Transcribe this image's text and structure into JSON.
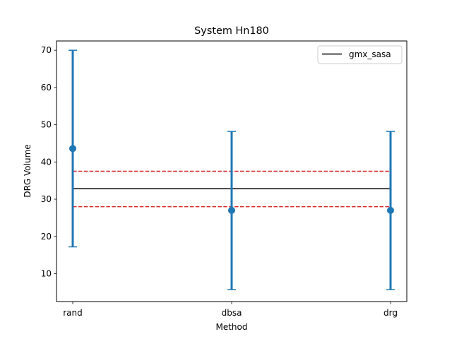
{
  "chart_data": {
    "type": "scatter",
    "title": "System Hn180",
    "xlabel": "Method",
    "ylabel": "DRG Volume",
    "categories": [
      "rand",
      "dbsa",
      "drg"
    ],
    "ylim": [
      2.5,
      72.5
    ],
    "yticks": [
      10,
      20,
      30,
      40,
      50,
      60,
      70
    ],
    "grid": false,
    "legend": {
      "position": "top-right",
      "entries": [
        "gmx_sasa"
      ]
    },
    "series": [
      {
        "type": "errorbar",
        "color": "#1f77b4",
        "points": [
          {
            "x": "rand",
            "y": 43.6,
            "low": 17.2,
            "high": 70.0
          },
          {
            "x": "dbsa",
            "y": 27.0,
            "low": 5.7,
            "high": 48.2
          },
          {
            "x": "drg",
            "y": 27.0,
            "low": 5.7,
            "high": 48.2
          }
        ]
      },
      {
        "name": "gmx_sasa",
        "type": "hline",
        "y": 32.8,
        "color": "#000000",
        "style": "solid"
      },
      {
        "type": "hline",
        "y": 37.5,
        "color": "#d62728",
        "style": "dashed"
      },
      {
        "type": "hline",
        "y": 28.0,
        "color": "#d62728",
        "style": "dashed"
      }
    ]
  }
}
